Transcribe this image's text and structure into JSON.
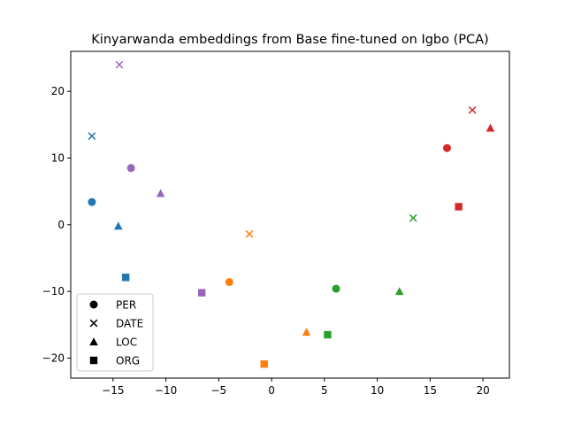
{
  "chart_data": {
    "type": "scatter",
    "title": "Kinyarwanda embeddings from Base fine-tuned on Igbo (PCA)",
    "xlim": [
      -19.0,
      22.5
    ],
    "ylim": [
      -23.0,
      26.0
    ],
    "x_ticks": [
      -15,
      -10,
      -5,
      0,
      5,
      10,
      15,
      20
    ],
    "y_ticks": [
      -20,
      -10,
      0,
      10,
      20
    ],
    "grid": false,
    "legend_position": "lower-left",
    "legend": [
      {
        "label": "PER",
        "marker": "circle"
      },
      {
        "label": "DATE",
        "marker": "x"
      },
      {
        "label": "LOC",
        "marker": "triangle"
      },
      {
        "label": "ORG",
        "marker": "square"
      }
    ],
    "groups": [
      {
        "color": "#1f77b4",
        "points": [
          {
            "marker": "circle",
            "x": -17.0,
            "y": 3.4
          },
          {
            "marker": "x",
            "x": -17.0,
            "y": 13.3
          },
          {
            "marker": "triangle",
            "x": -14.5,
            "y": -0.2
          },
          {
            "marker": "square",
            "x": -13.8,
            "y": -7.9
          }
        ]
      },
      {
        "color": "#ff7f0e",
        "points": [
          {
            "marker": "circle",
            "x": -4.0,
            "y": -8.6
          },
          {
            "marker": "x",
            "x": -2.1,
            "y": -1.4
          },
          {
            "marker": "triangle",
            "x": 3.3,
            "y": -16.1
          },
          {
            "marker": "square",
            "x": -0.7,
            "y": -20.9
          }
        ]
      },
      {
        "color": "#2ca02c",
        "points": [
          {
            "marker": "circle",
            "x": 6.1,
            "y": -9.6
          },
          {
            "marker": "x",
            "x": 13.4,
            "y": 1.0
          },
          {
            "marker": "triangle",
            "x": 12.1,
            "y": -10.0
          },
          {
            "marker": "square",
            "x": 5.3,
            "y": -16.5
          }
        ]
      },
      {
        "color": "#d62728",
        "points": [
          {
            "marker": "circle",
            "x": 16.6,
            "y": 11.5
          },
          {
            "marker": "x",
            "x": 19.0,
            "y": 17.2
          },
          {
            "marker": "triangle",
            "x": 20.7,
            "y": 14.5
          },
          {
            "marker": "square",
            "x": 17.7,
            "y": 2.7
          }
        ]
      },
      {
        "color": "#9467bd",
        "points": [
          {
            "marker": "circle",
            "x": -13.3,
            "y": 8.5
          },
          {
            "marker": "x",
            "x": -14.4,
            "y": 24.0
          },
          {
            "marker": "triangle",
            "x": -10.5,
            "y": 4.7
          },
          {
            "marker": "square",
            "x": -6.6,
            "y": -10.2
          }
        ]
      }
    ]
  }
}
